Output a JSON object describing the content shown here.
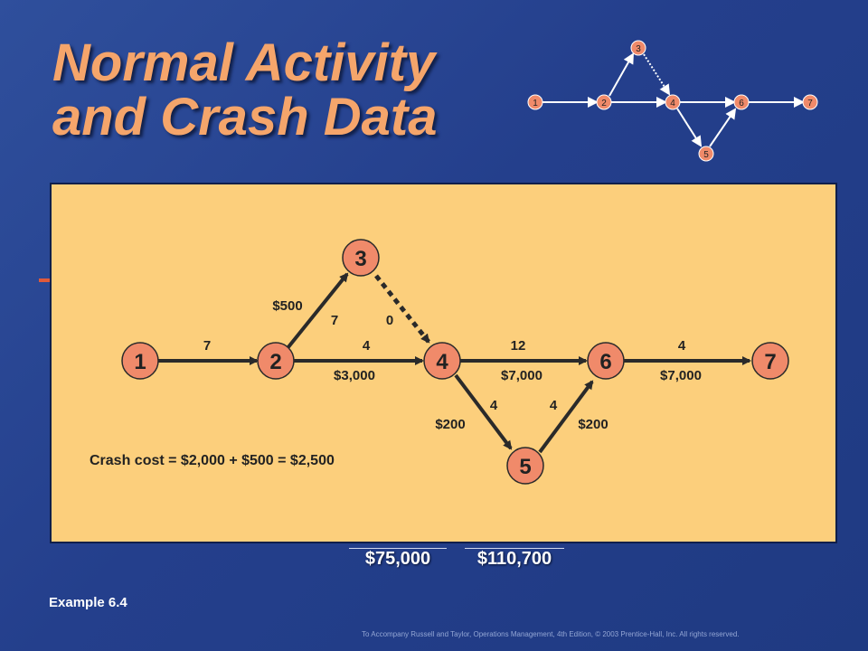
{
  "slide": {
    "title_line1": "Normal Activity",
    "title_line2": "and Crash Data",
    "example_label": "Example 6.4",
    "footer": "To Accompany Russell and Taylor, Operations Management, 4th Edition, © 2003 Prentice-Hall, Inc. All rights reserved."
  },
  "mini_network": {
    "nodes": [
      "1",
      "2",
      "3",
      "4",
      "5",
      "6",
      "7"
    ]
  },
  "network": {
    "nodes": [
      "1",
      "2",
      "3",
      "4",
      "5",
      "6",
      "7"
    ],
    "edge_labels": {
      "e12_duration": "7",
      "e23_duration": "7",
      "e23_cost": "$500",
      "e34_duration": "0",
      "e24_duration": "4",
      "e24_cost": "$3,000",
      "e46_duration": "12",
      "e46_cost": "$7,000",
      "e67_duration": "4",
      "e67_cost": "$7,000",
      "e45_duration": "4",
      "e45_cost": "$200",
      "e56_duration": "4",
      "e56_cost": "$200"
    },
    "crash_cost_text": "Crash cost = $2,000 + $500 = $2,500"
  },
  "totals": {
    "normal": "$75,000",
    "crash": "$110,700"
  },
  "colors": {
    "node_fill": "#f08a6a",
    "panel_fill": "#fccf7c",
    "title": "#f5a56b"
  }
}
